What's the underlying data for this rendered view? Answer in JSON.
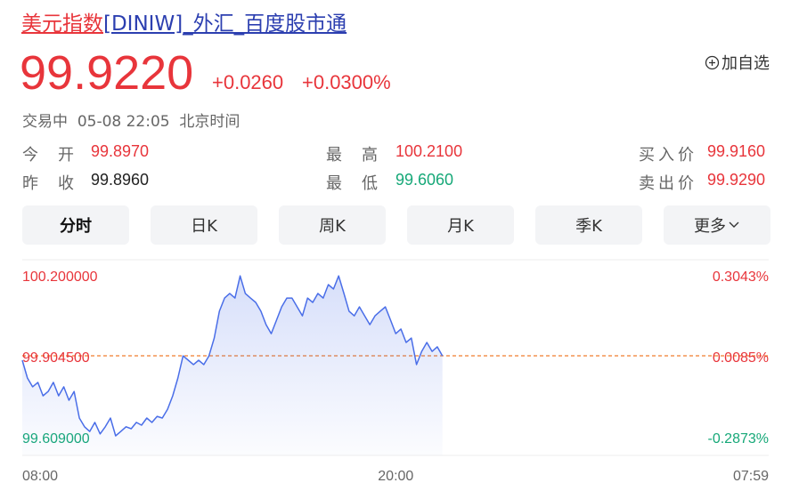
{
  "header": {
    "title_name": "美元指数",
    "title_rest": "[DINIW]_外汇_百度股市通",
    "price": "99.9220",
    "change": "+0.0260",
    "change_pct": "+0.0300%",
    "add_button": "加自选",
    "status": "交易中",
    "time": "05-08 22:05",
    "timezone": "北京时间"
  },
  "stats": [
    {
      "label": "今开",
      "value": "99.8970",
      "color": "#e8353b"
    },
    {
      "label": "昨收",
      "value": "99.8960",
      "color": "#222222"
    },
    {
      "label": "最高",
      "value": "100.2100",
      "color": "#e8353b"
    },
    {
      "label": "最低",
      "value": "99.6060",
      "color": "#16a878"
    },
    {
      "label": "买入价",
      "value": "99.9160",
      "color": "#e8353b"
    },
    {
      "label": "卖出价",
      "value": "99.9290",
      "color": "#e8353b"
    }
  ],
  "tabs": [
    "分时",
    "日K",
    "周K",
    "月K",
    "季K",
    "更多"
  ],
  "chart_data": {
    "type": "line",
    "color": "#4a6ee8",
    "x": [
      0,
      10,
      20,
      30,
      40,
      50,
      60,
      70,
      80,
      90,
      100,
      110,
      120,
      130,
      140,
      150,
      160,
      170,
      180,
      190,
      200,
      210,
      220,
      230,
      240,
      250,
      260,
      270,
      280,
      290,
      300,
      310,
      320,
      330,
      340,
      350,
      360,
      370,
      380,
      390,
      400,
      410,
      420,
      430,
      440,
      450,
      460,
      470,
      480,
      490,
      500,
      510,
      520,
      530,
      540,
      550,
      560,
      570,
      580,
      590,
      600,
      610,
      620,
      630,
      640,
      650,
      660,
      670,
      680,
      690,
      700,
      710,
      720,
      730,
      740,
      750,
      760,
      770,
      780,
      790,
      800,
      810
    ],
    "values": [
      99.898,
      99.833,
      99.801,
      99.817,
      99.768,
      99.784,
      99.817,
      99.768,
      99.801,
      99.752,
      99.784,
      99.687,
      99.655,
      99.638,
      99.671,
      99.629,
      99.655,
      99.687,
      99.622,
      99.638,
      99.655,
      99.648,
      99.671,
      99.661,
      99.687,
      99.671,
      99.693,
      99.687,
      99.719,
      99.768,
      99.833,
      99.914,
      99.898,
      99.882,
      99.898,
      99.882,
      99.914,
      99.979,
      100.077,
      100.125,
      100.142,
      100.125,
      100.206,
      100.142,
      100.125,
      100.109,
      100.077,
      100.028,
      99.995,
      100.044,
      100.093,
      100.125,
      100.125,
      100.093,
      100.06,
      100.125,
      100.109,
      100.142,
      100.125,
      100.174,
      100.158,
      100.206,
      100.142,
      100.077,
      100.06,
      100.093,
      100.06,
      100.028,
      100.06,
      100.077,
      100.093,
      100.044,
      99.995,
      100.012,
      99.963,
      99.979,
      99.882,
      99.93,
      99.963,
      99.93,
      99.947,
      99.914
    ],
    "xlim": [
      0,
      1439
    ],
    "xticks": [
      {
        "value": 0,
        "label": "08:00"
      },
      {
        "value": 720,
        "label": "20:00"
      },
      {
        "value": 1439,
        "label": "07:59"
      }
    ],
    "ylim": [
      99.609,
      100.2
    ],
    "yticks": [
      {
        "value": 99.609,
        "label": "99.609000"
      },
      {
        "value": 99.9045,
        "label": "99.904500"
      },
      {
        "value": 100.2,
        "label": "100.200000"
      }
    ],
    "y2lim": [
      -0.2873,
      0.3043
    ],
    "y2ticks": [
      {
        "value": -0.2873,
        "label": "-0.2873%"
      },
      {
        "value": 0.0085,
        "label": "0.0085%"
      },
      {
        "value": 0.3043,
        "label": "0.3043%"
      }
    ]
  }
}
